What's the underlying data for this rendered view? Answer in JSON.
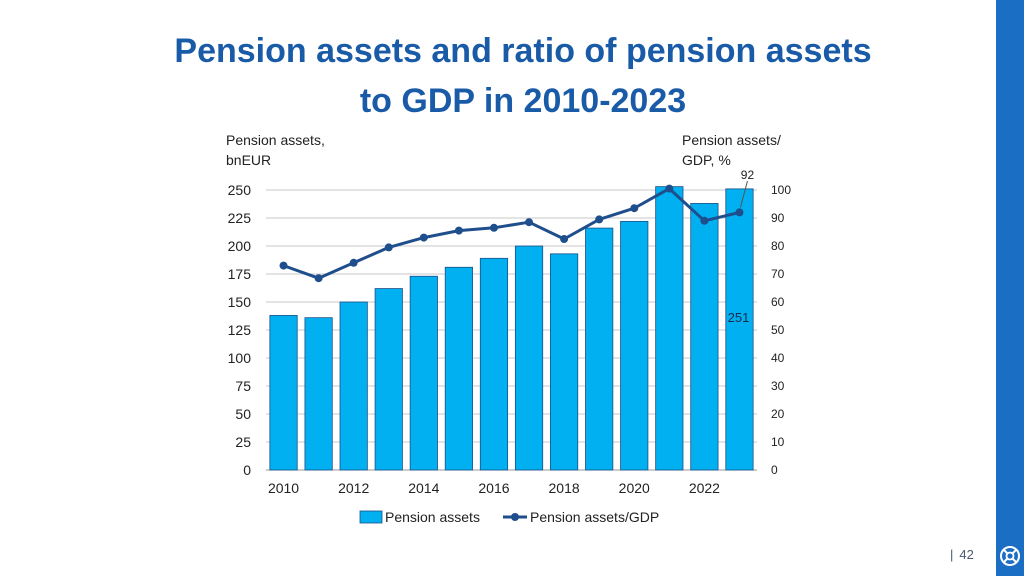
{
  "slide": {
    "title_line1": "Pension assets and ratio of pension assets",
    "title_line2": "to GDP in 2010-2023",
    "page_number": "42",
    "accent_color": "#1a6fc4",
    "logo_icon": "lifebuoy-icon"
  },
  "chart_data": {
    "type": "bar",
    "title": "Pension assets and ratio of pension assets to GDP in 2010-2023",
    "x": [
      2010,
      2011,
      2012,
      2013,
      2014,
      2015,
      2016,
      2017,
      2018,
      2019,
      2020,
      2021,
      2022,
      2023
    ],
    "x_tick_labels": [
      "2010",
      "2012",
      "2014",
      "2016",
      "2018",
      "2020",
      "2022"
    ],
    "ylabel_left_line1": "Pension assets,",
    "ylabel_left_line2": "bnEUR",
    "ylabel_right_line1": "Pension assets/",
    "ylabel_right_line2": "GDP, %",
    "ylim_left": [
      0,
      250
    ],
    "ylim_right": [
      0,
      100
    ],
    "yticks_left": [
      0,
      25,
      50,
      75,
      100,
      125,
      150,
      175,
      200,
      225,
      250
    ],
    "yticks_right": [
      0,
      10,
      20,
      30,
      40,
      50,
      60,
      70,
      80,
      90,
      100
    ],
    "grid": true,
    "legend_position": "bottom",
    "series": [
      {
        "name": "Pension assets",
        "type": "bar",
        "axis": "left",
        "color": "#00b0f0",
        "values": [
          138,
          136,
          150,
          162,
          173,
          181,
          189,
          200,
          193,
          216,
          222,
          253,
          238,
          251
        ]
      },
      {
        "name": "Pension assets/GDP",
        "type": "line",
        "axis": "right",
        "color": "#1f4e8c",
        "values": [
          73,
          68.5,
          74,
          79.5,
          83,
          85.5,
          86.5,
          88.5,
          82.5,
          89.5,
          93.5,
          100.5,
          89,
          92
        ]
      }
    ],
    "annotations": [
      {
        "text": "251",
        "series": "Pension assets",
        "x": 2023
      },
      {
        "text": "92",
        "series": "Pension assets/GDP",
        "x": 2023
      }
    ]
  }
}
